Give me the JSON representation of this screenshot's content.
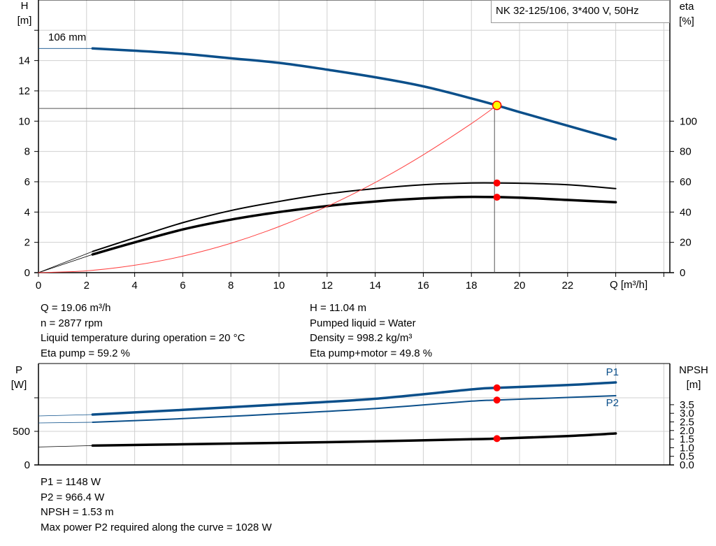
{
  "colors": {
    "head_curve": "#0b4f8a",
    "efficiency": "#000000",
    "system_curve": "#ff4040",
    "power": "#0b4f8a",
    "npsh": "#000000",
    "duty_point": "#ff0000",
    "operating_point_fill": "#ffff00",
    "grid": "#d0d0d0"
  },
  "chart_data": [
    {
      "type": "line",
      "title": "NK 32-125/106, 3*400 V, 50Hz",
      "curve_label": "106 mm",
      "xlabel": "Q [m³/h]",
      "ylabel_left": "H\n[m]",
      "ylabel_left_lines": [
        "H",
        "[m]"
      ],
      "ylabel_right_lines": [
        "eta",
        "[%]"
      ],
      "xlim": [
        0,
        26
      ],
      "ylim_left": [
        0,
        18
      ],
      "ylim_right": [
        0,
        180
      ],
      "x_ticks": [
        0,
        2,
        4,
        6,
        8,
        10,
        12,
        14,
        16,
        18,
        20,
        22
      ],
      "y_ticks_left": [
        0,
        2,
        4,
        6,
        8,
        10,
        12,
        14
      ],
      "y_ticks_right": [
        0,
        20,
        40,
        60,
        80,
        100
      ],
      "grid": true,
      "operating_point": {
        "Q": 19.06,
        "H": 11.04,
        "eta_pump": 59.2,
        "eta_pump_motor": 49.8
      },
      "series": [
        {
          "key": "head",
          "axis": "left",
          "width": 3.5,
          "x": [
            2.25,
            4,
            6,
            8,
            10,
            12,
            14,
            16,
            18,
            19.06,
            20,
            22,
            24
          ],
          "y": [
            14.8,
            14.65,
            14.45,
            14.15,
            13.85,
            13.4,
            12.9,
            12.3,
            11.5,
            11.04,
            10.6,
            9.7,
            8.8
          ],
          "extension": {
            "x": [
              0,
              2.25
            ],
            "y": [
              14.8,
              14.8
            ]
          }
        },
        {
          "key": "eta_pump",
          "axis": "right",
          "width": 2,
          "x": [
            2.25,
            4,
            6,
            8,
            10,
            12,
            14,
            16,
            18,
            20,
            22,
            24
          ],
          "y": [
            14,
            23,
            33,
            41,
            47,
            52,
            55.5,
            58,
            59.2,
            59,
            58,
            55.5
          ],
          "extension": {
            "x": [
              0,
              2.25
            ],
            "y": [
              0,
              14
            ]
          }
        },
        {
          "key": "eta_pump_motor",
          "axis": "right",
          "width": 3.5,
          "x": [
            2.25,
            4,
            6,
            8,
            10,
            12,
            14,
            16,
            18,
            20,
            22,
            24
          ],
          "y": [
            12,
            20,
            28.5,
            35,
            40,
            44,
            47,
            49,
            50,
            49.5,
            48,
            46.5
          ],
          "extension": {
            "x": [
              0,
              2.25
            ],
            "y": [
              0,
              12
            ]
          }
        },
        {
          "key": "system",
          "axis": "left",
          "width": 1,
          "x": [
            0,
            2,
            4,
            6,
            8,
            10,
            12,
            14,
            16,
            18,
            19.06
          ],
          "y": [
            0,
            0.12,
            0.49,
            1.09,
            1.94,
            3.04,
            4.37,
            5.95,
            7.78,
            9.84,
            11.04
          ]
        }
      ]
    },
    {
      "type": "line",
      "xlim": [
        0,
        26
      ],
      "ylabel_left_lines": [
        "P",
        "[W]"
      ],
      "ylabel_right_lines": [
        "NPSH",
        "[m]"
      ],
      "ylim_left": [
        0,
        1500
      ],
      "ylim_right": [
        0,
        6
      ],
      "y_ticks_left": [
        0,
        500,
        1000
      ],
      "y_tick_labels_left": [
        "0",
        "500",
        ""
      ],
      "y_ticks_right": [
        "0.0",
        "0.5",
        "1.0",
        "1.5",
        "2.0",
        "2.5",
        "3.0",
        "3.5"
      ],
      "grid": true,
      "series": [
        {
          "key": "P1",
          "name": "P1",
          "axis": "left",
          "width": 3.5,
          "x": [
            2.25,
            6,
            10,
            14,
            18,
            19.06,
            22,
            24
          ],
          "y": [
            750,
            820,
            900,
            985,
            1125,
            1148,
            1190,
            1229
          ],
          "extension": {
            "x": [
              0,
              2.25
            ],
            "y": [
              729,
              750
            ]
          }
        },
        {
          "key": "P2",
          "name": "P2",
          "axis": "left",
          "width": 2,
          "x": [
            2.25,
            6,
            10,
            14,
            18,
            19.06,
            22,
            24
          ],
          "y": [
            635,
            690,
            760,
            840,
            950,
            966.4,
            1005,
            1031
          ],
          "extension": {
            "x": [
              0,
              2.25
            ],
            "y": [
              625,
              635
            ]
          }
        },
        {
          "key": "NPSH",
          "axis": "right",
          "width": 3.5,
          "x": [
            2.25,
            6,
            10,
            14,
            18,
            19.06,
            22,
            24
          ],
          "y": [
            1.12,
            1.2,
            1.28,
            1.37,
            1.49,
            1.53,
            1.68,
            1.83
          ],
          "extension": {
            "x": [
              0,
              2.25
            ],
            "y": [
              1.04,
              1.12
            ]
          }
        }
      ],
      "duty_points": [
        {
          "series": "P1",
          "Q": 19.06,
          "y": 1148
        },
        {
          "series": "P2",
          "Q": 19.06,
          "y": 966.4
        },
        {
          "series": "NPSH",
          "Q": 19.06,
          "y": 1.53
        }
      ]
    }
  ],
  "info_top": {
    "left": [
      "Q = 19.06 m³/h",
      "n = 2877 rpm",
      "Liquid temperature during operation = 20 °C",
      "Eta pump = 59.2 %"
    ],
    "right": [
      "H = 11.04 m",
      "Pumped liquid = Water",
      "Density = 998.2 kg/m³",
      "Eta pump+motor = 49.8 %"
    ]
  },
  "info_bottom": [
    "P1 = 1148 W",
    "P2 = 966.4 W",
    "NPSH = 1.53 m",
    "Max power P2 required along the curve = 1028 W"
  ]
}
